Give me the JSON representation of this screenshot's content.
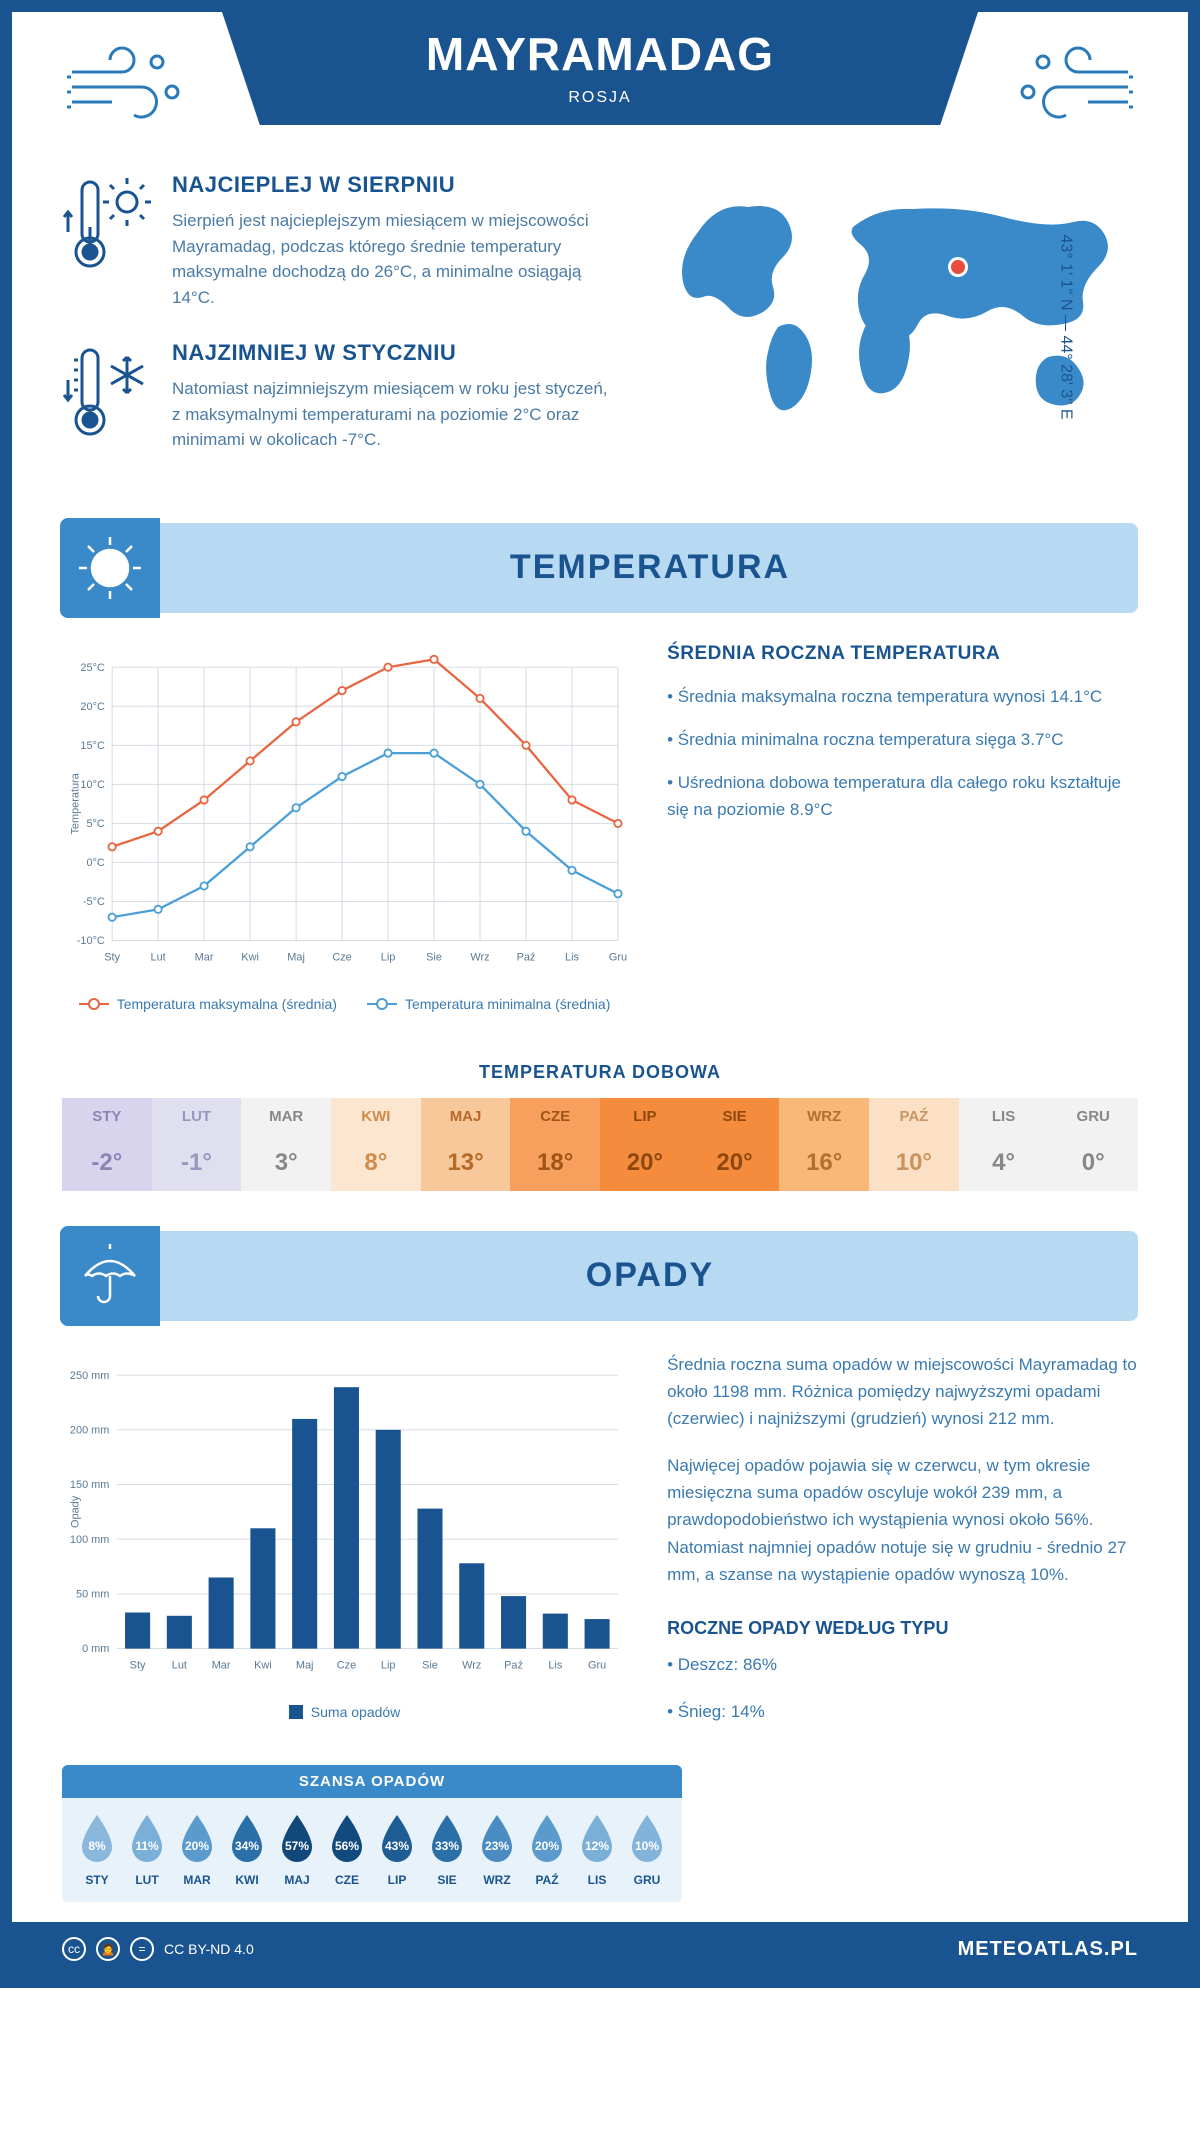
{
  "header": {
    "title": "MAYRAMADAG",
    "country": "ROSJA"
  },
  "coords": "43° 1' 1'' N — 44° 28' 3'' E",
  "facts": {
    "warm": {
      "title": "NAJCIEPLEJ W SIERPNIU",
      "text": "Sierpień jest najcieplejszym miesiącem w miejscowości Mayramadag, podczas którego średnie temperatury maksymalne dochodzą do 26°C, a minimalne osiągają 14°C."
    },
    "cold": {
      "title": "NAJZIMNIEJ W STYCZNIU",
      "text": "Natomiast najzimniejszym miesiącem w roku jest styczeń, z maksymalnymi temperaturami na poziomie 2°C oraz minimami w okolicach -7°C."
    }
  },
  "colors": {
    "primary": "#1a5490",
    "secondary": "#3a8ac9",
    "light": "#b8d9f2",
    "map": "#3a8ac9",
    "marker": "#e84c3d",
    "temp_max_line": "#e8653f",
    "temp_min_line": "#4a9fd8",
    "grid": "#d0d8e0",
    "bar": "#1a5490"
  },
  "temp_section": {
    "heading": "TEMPERATURA",
    "chart": {
      "type": "line",
      "months": [
        "Sty",
        "Lut",
        "Mar",
        "Kwi",
        "Maj",
        "Cze",
        "Lip",
        "Sie",
        "Wrz",
        "Paź",
        "Lis",
        "Gru"
      ],
      "max_series": [
        2,
        4,
        8,
        13,
        18,
        22,
        25,
        26,
        21,
        15,
        8,
        5
      ],
      "min_series": [
        -7,
        -6,
        -3,
        2,
        7,
        11,
        14,
        14,
        10,
        4,
        -1,
        -4
      ],
      "ylim": [
        -10,
        25
      ],
      "ytick_step": 5,
      "ylabel": "Temperatura",
      "legend_max": "Temperatura maksymalna (średnia)",
      "legend_min": "Temperatura minimalna (średnia)"
    },
    "avg": {
      "title": "ŚREDNIA ROCZNA TEMPERATURA",
      "b1": "• Średnia maksymalna roczna temperatura wynosi 14.1°C",
      "b2": "• Średnia minimalna roczna temperatura sięga 3.7°C",
      "b3": "• Uśredniona dobowa temperatura dla całego roku kształtuje się na poziomie 8.9°C"
    },
    "daily": {
      "title": "TEMPERATURA DOBOWA",
      "months": [
        "STY",
        "LUT",
        "MAR",
        "KWI",
        "MAJ",
        "CZE",
        "LIP",
        "SIE",
        "WRZ",
        "PAŹ",
        "LIS",
        "GRU"
      ],
      "values": [
        "-2°",
        "-1°",
        "3°",
        "8°",
        "13°",
        "18°",
        "20°",
        "20°",
        "16°",
        "10°",
        "4°",
        "0°"
      ],
      "bg_colors": [
        "#d8d4ee",
        "#e0dff0",
        "#f2f2f2",
        "#fce6d0",
        "#f9c89a",
        "#f7a05e",
        "#f58b3c",
        "#f58b3c",
        "#f9b877",
        "#fce0c5",
        "#f2f2f2",
        "#f2f2f2"
      ],
      "text_colors": [
        "#8a85b5",
        "#9a96bc",
        "#888",
        "#d08a4a",
        "#b56a28",
        "#a05518",
        "#8f4810",
        "#8f4810",
        "#b07030",
        "#c8945f",
        "#888",
        "#888"
      ]
    }
  },
  "precip_section": {
    "heading": "OPADY",
    "chart": {
      "type": "bar",
      "months": [
        "Sty",
        "Lut",
        "Mar",
        "Kwi",
        "Maj",
        "Cze",
        "Lip",
        "Sie",
        "Wrz",
        "Paź",
        "Lis",
        "Gru"
      ],
      "values": [
        33,
        30,
        65,
        110,
        210,
        239,
        200,
        128,
        78,
        48,
        32,
        27
      ],
      "ylim": [
        0,
        250
      ],
      "ytick_step": 50,
      "ylabel": "Opady",
      "legend": "Suma opadów"
    },
    "text1": "Średnia roczna suma opadów w miejscowości Mayramadag to około 1198 mm. Różnica pomiędzy najwyższymi opadami (czerwiec) i najniższymi (grudzień) wynosi 212 mm.",
    "text2": "Najwięcej opadów pojawia się w czerwcu, w tym okresie miesięczna suma opadów oscyluje wokół 239 mm, a prawdopodobieństwo ich wystąpienia wynosi około 56%. Natomiast najmniej opadów notuje się w grudniu - średnio 27 mm, a szanse na wystąpienie opadów wynoszą 10%.",
    "by_type": {
      "title": "ROCZNE OPADY WEDŁUG TYPU",
      "b1": "• Deszcz: 86%",
      "b2": "• Śnieg: 14%"
    },
    "chance": {
      "title": "SZANSA OPADÓW",
      "months": [
        "STY",
        "LUT",
        "MAR",
        "KWI",
        "MAJ",
        "CZE",
        "LIP",
        "SIE",
        "WRZ",
        "PAŹ",
        "LIS",
        "GRU"
      ],
      "values": [
        "8%",
        "11%",
        "20%",
        "34%",
        "57%",
        "56%",
        "43%",
        "33%",
        "23%",
        "20%",
        "12%",
        "10%"
      ],
      "drop_colors": [
        "#8ab8dd",
        "#7aafd7",
        "#5a9acc",
        "#2a6fa8",
        "#12477a",
        "#134a7e",
        "#1d5d94",
        "#2a6fa8",
        "#4a8cc2",
        "#5a9acc",
        "#7aafd7",
        "#82b3da"
      ]
    }
  },
  "footer": {
    "license": "CC BY-ND 4.0",
    "site": "METEOATLAS.PL"
  }
}
